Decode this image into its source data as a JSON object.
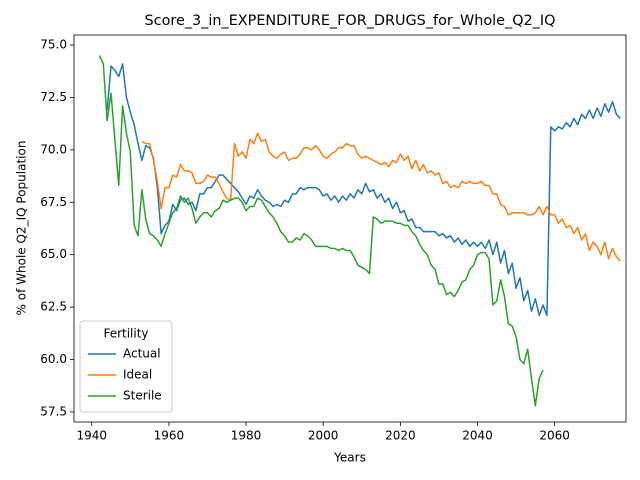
{
  "chart_data": {
    "type": "line",
    "title": "Score_3_in_EXPENDITURE_FOR_DRUGS_for_Whole_Q2_IQ",
    "xlabel": "Years",
    "ylabel": "% of Whole Q2_IQ Population",
    "legend_title": "Fertility",
    "legend": "lower left",
    "xlim": [
      1935.4,
      2078.5
    ],
    "ylim": [
      57.02,
      75.48
    ],
    "xticks": [
      1940,
      1960,
      1980,
      2000,
      2020,
      2040,
      2060
    ],
    "yticks": [
      57.5,
      {
        "value": 60,
        "label": "60.0"
      },
      62.5,
      {
        "value": 65,
        "label": "65.0"
      },
      67.5,
      {
        "value": 70,
        "label": "70.0"
      },
      72.5,
      {
        "value": 75,
        "label": "75.0"
      }
    ],
    "x": [
      1942,
      1943,
      1944,
      1945,
      1946,
      1947,
      1948,
      1949,
      1950,
      1951,
      1952,
      1953,
      1954,
      1955,
      1956,
      1957,
      1958,
      1959,
      1960,
      1961,
      1962,
      1963,
      1964,
      1965,
      1966,
      1967,
      1968,
      1969,
      1970,
      1971,
      1972,
      1973,
      1974,
      1975,
      1976,
      1977,
      1978,
      1979,
      1980,
      1981,
      1982,
      1983,
      1984,
      1985,
      1986,
      1987,
      1988,
      1989,
      1990,
      1991,
      1992,
      1993,
      1994,
      1995,
      1996,
      1997,
      1998,
      1999,
      2000,
      2001,
      2002,
      2003,
      2004,
      2005,
      2006,
      2007,
      2008,
      2009,
      2010,
      2011,
      2012,
      2013,
      2014,
      2015,
      2016,
      2017,
      2018,
      2019,
      2020,
      2021,
      2022,
      2023,
      2024,
      2025,
      2026,
      2027,
      2028,
      2029,
      2030,
      2031,
      2032,
      2033,
      2034,
      2035,
      2036,
      2037,
      2038,
      2039,
      2040,
      2041,
      2042,
      2043,
      2044,
      2045,
      2046,
      2047,
      2048,
      2049,
      2050,
      2051,
      2052,
      2053,
      2054,
      2055,
      2056,
      2057,
      2058,
      2059,
      2060,
      2061,
      2062,
      2063,
      2064,
      2065,
      2066,
      2067,
      2068,
      2069,
      2070,
      2071,
      2072,
      2073,
      2074,
      2075,
      2076,
      2077
    ],
    "series": [
      {
        "name": "Actual",
        "color": "#1f77b4",
        "values": [
          null,
          null,
          71.9,
          74.0,
          73.8,
          73.5,
          74.1,
          72.5,
          71.8,
          71.2,
          70.3,
          69.5,
          70.2,
          70.1,
          69.6,
          68.2,
          66.0,
          66.4,
          66.6,
          67.4,
          67.1,
          67.6,
          67.7,
          67.4,
          67.5,
          67.1,
          67.9,
          67.9,
          68.2,
          68.2,
          68.5,
          68.8,
          68.8,
          68.6,
          68.4,
          68.2,
          68.0,
          67.7,
          67.4,
          67.8,
          67.7,
          68.1,
          67.8,
          67.6,
          67.5,
          67.3,
          67.4,
          67.3,
          67.6,
          67.5,
          67.9,
          67.9,
          68.2,
          68.1,
          68.2,
          68.2,
          68.2,
          68.1,
          67.8,
          67.9,
          67.6,
          67.8,
          67.5,
          67.8,
          67.6,
          67.9,
          67.7,
          68.1,
          67.9,
          68.4,
          68.0,
          68.1,
          67.7,
          67.9,
          67.5,
          67.7,
          67.2,
          67.5,
          67.0,
          67.1,
          66.6,
          66.7,
          66.3,
          66.3,
          66.1,
          66.1,
          66.1,
          66.1,
          65.9,
          66.0,
          65.8,
          65.9,
          65.6,
          65.8,
          65.5,
          65.7,
          65.4,
          65.6,
          65.4,
          65.6,
          65.3,
          65.7,
          65.0,
          65.6,
          64.6,
          65.2,
          64.1,
          64.6,
          63.4,
          63.9,
          62.8,
          63.3,
          62.3,
          62.9,
          62.1,
          62.6,
          62.1,
          71.1,
          70.9,
          71.1,
          71.0,
          71.3,
          71.1,
          71.5,
          71.2,
          71.7,
          71.5,
          71.9,
          71.5,
          72.0,
          71.6,
          72.2,
          71.8,
          72.3,
          71.7,
          71.5
        ]
      },
      {
        "name": "Ideal",
        "color": "#ff7f0e",
        "values": [
          null,
          null,
          null,
          null,
          null,
          null,
          null,
          null,
          null,
          null,
          null,
          70.4,
          70.3,
          70.3,
          69.5,
          68.5,
          67.2,
          68.2,
          68.2,
          68.8,
          68.7,
          69.3,
          69.0,
          69.0,
          68.9,
          68.4,
          68.4,
          68.5,
          68.8,
          68.7,
          68.7,
          68.4,
          68.0,
          67.7,
          67.6,
          70.3,
          69.7,
          69.9,
          69.6,
          70.5,
          70.3,
          70.8,
          70.4,
          70.5,
          69.9,
          69.7,
          69.6,
          69.8,
          69.9,
          69.5,
          69.6,
          69.6,
          69.8,
          70.1,
          70.1,
          70.0,
          70.2,
          70.0,
          69.7,
          69.6,
          69.8,
          69.9,
          70.1,
          70.1,
          70.3,
          70.2,
          70.2,
          69.8,
          69.6,
          69.7,
          69.6,
          69.5,
          69.4,
          69.3,
          69.4,
          69.2,
          69.5,
          69.4,
          69.8,
          69.5,
          69.7,
          69.1,
          69.5,
          69.0,
          69.3,
          68.9,
          69.0,
          68.8,
          68.9,
          68.4,
          68.5,
          68.2,
          68.3,
          68.2,
          68.5,
          68.4,
          68.5,
          68.4,
          68.4,
          68.5,
          68.3,
          68.3,
          67.9,
          67.9,
          67.4,
          67.3,
          66.9,
          67.0,
          67.0,
          67.0,
          67.0,
          66.9,
          66.9,
          67.0,
          67.3,
          66.9,
          67.3,
          66.9,
          66.9,
          66.5,
          66.7,
          66.3,
          66.4,
          66.0,
          66.3,
          65.7,
          66.0,
          65.2,
          65.6,
          65.4,
          65.0,
          65.6,
          64.8,
          65.3,
          64.9,
          64.7
        ]
      },
      {
        "name": "Sterile",
        "color": "#2ca02c",
        "values": [
          74.5,
          74.1,
          71.4,
          72.7,
          70.5,
          68.3,
          72.1,
          70.8,
          69.9,
          66.4,
          65.9,
          68.1,
          66.7,
          66.0,
          65.9,
          65.7,
          65.4,
          66.0,
          66.5,
          67.0,
          67.2,
          67.8,
          67.5,
          67.7,
          67.2,
          66.5,
          66.8,
          67.0,
          67.0,
          66.8,
          67.1,
          67.2,
          67.6,
          67.5,
          67.6,
          67.7,
          67.7,
          67.5,
          67.1,
          67.3,
          67.3,
          67.7,
          67.6,
          67.3,
          67.0,
          66.8,
          66.5,
          66.1,
          65.9,
          65.6,
          65.6,
          65.8,
          65.7,
          66.0,
          65.9,
          65.7,
          65.4,
          65.4,
          65.4,
          65.4,
          65.3,
          65.3,
          65.2,
          65.3,
          65.2,
          65.2,
          64.9,
          64.5,
          64.4,
          64.3,
          64.1,
          66.8,
          66.7,
          66.5,
          66.6,
          66.6,
          66.6,
          66.5,
          66.5,
          66.4,
          66.4,
          66.1,
          65.9,
          65.5,
          65.2,
          65.0,
          64.5,
          64.3,
          63.6,
          63.6,
          63.1,
          63.2,
          63.0,
          63.3,
          63.7,
          63.8,
          64.3,
          64.5,
          65.0,
          65.1,
          65.1,
          64.8,
          62.6,
          62.8,
          63.8,
          63.0,
          61.7,
          61.6,
          61.1,
          60.0,
          59.8,
          60.5,
          59.1,
          57.8,
          59.1,
          59.5,
          null,
          null,
          null,
          null,
          null,
          null,
          null,
          null,
          null,
          null,
          null,
          null,
          null,
          null,
          null,
          null,
          null,
          null,
          null,
          null
        ]
      }
    ]
  }
}
